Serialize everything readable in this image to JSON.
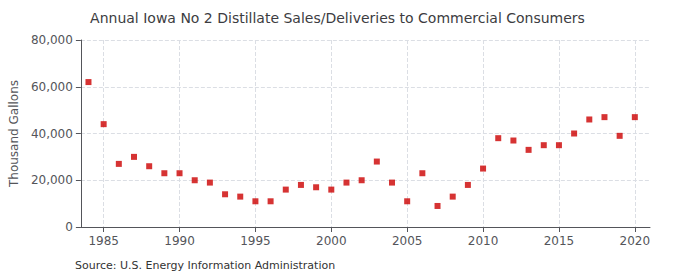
{
  "chart_data": {
    "type": "scatter",
    "title": "Annual Iowa No 2 Distillate Sales/Deliveries to Commercial Consumers",
    "ylabel": "Thousand Gallons",
    "annotations": [
      "Source: U.S. Energy Information Administration"
    ],
    "x": [
      1984,
      1985,
      1986,
      1987,
      1988,
      1989,
      1990,
      1991,
      1992,
      1993,
      1994,
      1995,
      1996,
      1997,
      1998,
      1999,
      2000,
      2001,
      2002,
      2003,
      2004,
      2005,
      2006,
      2007,
      2008,
      2009,
      2010,
      2011,
      2012,
      2013,
      2014,
      2015,
      2016,
      2017,
      2018,
      2019,
      2020
    ],
    "values": [
      62000,
      44000,
      27000,
      30000,
      26000,
      23000,
      23000,
      20000,
      19000,
      14000,
      13000,
      11000,
      11000,
      16000,
      18000,
      17000,
      16000,
      19000,
      20000,
      28000,
      19000,
      11000,
      23000,
      9000,
      13000,
      18000,
      25000,
      38000,
      37000,
      33000,
      35000,
      35000,
      40000,
      46000,
      47000,
      39000,
      47000
    ],
    "color": "#cc0000",
    "marker": "square",
    "xlim": [
      1983.5,
      2021
    ],
    "xticks": [
      1985,
      1990,
      1995,
      2000,
      2005,
      2010,
      2015,
      2020
    ],
    "ylim": [
      0,
      80000
    ],
    "yticks": [
      0,
      {
        "value": 20000,
        "label": "20,000"
      },
      {
        "value": 40000,
        "label": "40,000"
      },
      {
        "value": 60000,
        "label": "60,000"
      },
      {
        "value": 80000,
        "label": "80,000"
      }
    ],
    "grid": true
  }
}
